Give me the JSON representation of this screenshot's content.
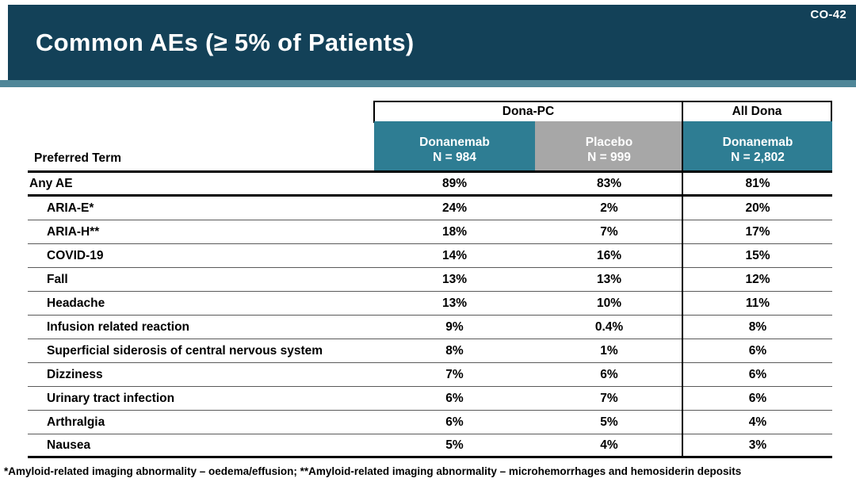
{
  "slide": {
    "code": "CO-42",
    "title": "Common AEs (≥ 5% of Patients)",
    "footnote": "*Amyloid-related imaging abnormality – oedema/effusion; **Amyloid-related imaging abnormality – microhemorrhages and hemosiderin deposits"
  },
  "colors": {
    "title_bar": "#134158",
    "accent_strip": "#4F8698",
    "teal_header": "#2E7D93",
    "gray_header": "#A7A7A7"
  },
  "table": {
    "row_header": "Preferred Term",
    "groups": [
      {
        "label": "Dona-PC"
      },
      {
        "label": "All Dona"
      }
    ],
    "columns": [
      {
        "label": "Donanemab",
        "n": "N = 984"
      },
      {
        "label": "Placebo",
        "n": "N = 999"
      },
      {
        "label": "Donanemab",
        "n": "N = 2,802"
      }
    ],
    "rows": [
      {
        "term": "Any AE",
        "indent": false,
        "values": [
          "89%",
          "83%",
          "81%"
        ]
      },
      {
        "term": "ARIA-E*",
        "indent": true,
        "values": [
          "24%",
          "2%",
          "20%"
        ]
      },
      {
        "term": "ARIA-H**",
        "indent": true,
        "values": [
          "18%",
          "7%",
          "17%"
        ]
      },
      {
        "term": "COVID-19",
        "indent": true,
        "values": [
          "14%",
          "16%",
          "15%"
        ]
      },
      {
        "term": "Fall",
        "indent": true,
        "values": [
          "13%",
          "13%",
          "12%"
        ]
      },
      {
        "term": "Headache",
        "indent": true,
        "values": [
          "13%",
          "10%",
          "11%"
        ]
      },
      {
        "term": "Infusion related reaction",
        "indent": true,
        "values": [
          "9%",
          "0.4%",
          "8%"
        ]
      },
      {
        "term": "Superficial siderosis of central nervous system",
        "indent": true,
        "values": [
          "8%",
          "1%",
          "6%"
        ]
      },
      {
        "term": "Dizziness",
        "indent": true,
        "values": [
          "7%",
          "6%",
          "6%"
        ]
      },
      {
        "term": "Urinary tract infection",
        "indent": true,
        "values": [
          "6%",
          "7%",
          "6%"
        ]
      },
      {
        "term": "Arthralgia",
        "indent": true,
        "values": [
          "6%",
          "5%",
          "4%"
        ]
      },
      {
        "term": "Nausea",
        "indent": true,
        "values": [
          "5%",
          "4%",
          "3%"
        ]
      }
    ]
  }
}
